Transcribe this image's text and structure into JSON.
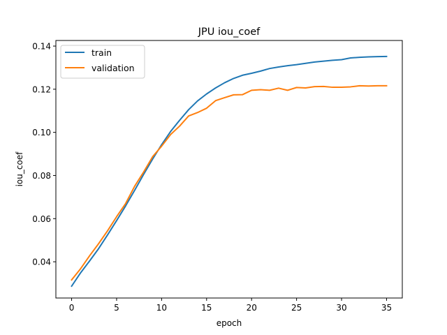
{
  "chart_data": {
    "type": "line",
    "title": "JPU iou_coef",
    "xlabel": "epoch",
    "ylabel": "iou_coef",
    "xlim": [
      -1.75,
      36.75
    ],
    "ylim": [
      0.0232,
      0.1426
    ],
    "xticks": [
      0,
      5,
      10,
      15,
      20,
      25,
      30,
      35
    ],
    "xtick_labels": [
      "0",
      "5",
      "10",
      "15",
      "20",
      "25",
      "30",
      "35"
    ],
    "yticks": [
      0.04,
      0.06,
      0.08,
      0.1,
      0.12,
      0.14
    ],
    "ytick_labels": [
      "0.04",
      "0.06",
      "0.08",
      "0.10",
      "0.12",
      "0.14"
    ],
    "grid": false,
    "legend_position": "top-left",
    "x": [
      0,
      1,
      2,
      3,
      4,
      5,
      6,
      7,
      8,
      9,
      10,
      11,
      12,
      13,
      14,
      15,
      16,
      17,
      18,
      19,
      20,
      21,
      22,
      23,
      24,
      25,
      26,
      27,
      28,
      29,
      30,
      31,
      32,
      33,
      34,
      35
    ],
    "series": [
      {
        "name": "train",
        "color": "#1f77b4",
        "values": [
          0.0287,
          0.0349,
          0.0404,
          0.0461,
          0.0525,
          0.0591,
          0.0659,
          0.0731,
          0.0805,
          0.0876,
          0.0943,
          0.1004,
          0.1056,
          0.1105,
          0.1146,
          0.1178,
          0.1206,
          0.123,
          0.125,
          0.1265,
          0.1274,
          0.1284,
          0.1296,
          0.1303,
          0.1309,
          0.1314,
          0.132,
          0.1326,
          0.133,
          0.1334,
          0.1337,
          0.1345,
          0.1348,
          0.135,
          0.1351,
          0.1352
        ]
      },
      {
        "name": "validation",
        "color": "#ff7f0e",
        "values": [
          0.0316,
          0.0368,
          0.0428,
          0.0484,
          0.0544,
          0.0609,
          0.067,
          0.075,
          0.0816,
          0.0887,
          0.0936,
          0.099,
          0.1029,
          0.1076,
          0.1092,
          0.1112,
          0.1147,
          0.1161,
          0.1174,
          0.1175,
          0.1195,
          0.1198,
          0.1195,
          0.1205,
          0.1195,
          0.1208,
          0.1206,
          0.1212,
          0.1213,
          0.1209,
          0.1209,
          0.1211,
          0.1216,
          0.1215,
          0.1216,
          0.1216
        ]
      }
    ]
  }
}
